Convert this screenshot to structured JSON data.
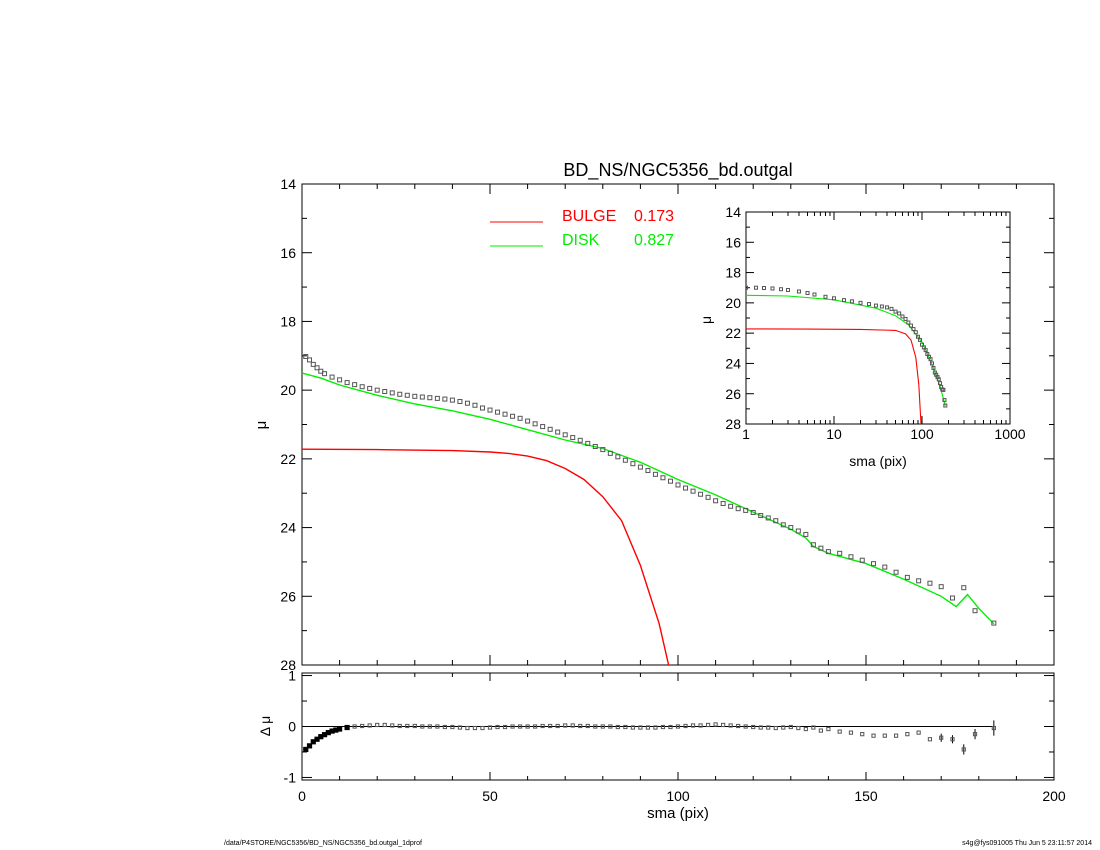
{
  "title": "BD_NS/NGC5356_bd.outgal",
  "footer": {
    "path": "/data/P4STORE/NGC5356/BD_NS/NGC5356_bd.outgal_1dprof",
    "stamp": "s4g@fys091005  Thu Jun  5 23:11:57 2014"
  },
  "colors": {
    "bulge": "#ff0000",
    "disk": "#00ee00",
    "data": "#555555",
    "frame": "#000000"
  },
  "chart_data": [
    {
      "id": "main",
      "type": "line",
      "title": "BD_NS/NGC5356_bd.outgal",
      "xlabel": "",
      "ylabel": "μ",
      "xlim": [
        0,
        200
      ],
      "ylim": [
        28,
        14
      ],
      "xticks": [
        0,
        50,
        100,
        150,
        200
      ],
      "xticklabels": [
        "",
        "",
        "",
        "",
        ""
      ],
      "yticks": [
        14,
        16,
        18,
        20,
        22,
        24,
        26,
        28
      ],
      "yticklabels": [
        "14",
        "16",
        "18",
        "20",
        "22",
        "24",
        "26",
        "28"
      ],
      "legend_position": "top-center",
      "legend": [
        {
          "label": "BULGE",
          "value": "0.173",
          "color": "#ff0000"
        },
        {
          "label": "DISK",
          "value": "0.827",
          "color": "#00ee00"
        }
      ],
      "series": [
        {
          "name": "BULGE",
          "color": "#ff0000",
          "x": [
            0,
            20,
            40,
            50,
            55,
            60,
            65,
            70,
            75,
            80,
            85,
            90,
            95,
            97.5
          ],
          "y": [
            21.72,
            21.73,
            21.76,
            21.8,
            21.84,
            21.92,
            22.05,
            22.28,
            22.6,
            23.1,
            23.8,
            25.1,
            26.8,
            28.0
          ]
        },
        {
          "name": "DISK",
          "color": "#00ee00",
          "x": [
            0,
            5,
            10,
            20,
            30,
            40,
            50,
            60,
            70,
            80,
            90,
            100,
            110,
            120,
            130,
            134,
            136,
            140,
            150,
            160,
            170,
            174,
            177,
            180,
            184
          ],
          "y": [
            19.5,
            19.65,
            19.85,
            20.15,
            20.4,
            20.6,
            20.85,
            21.15,
            21.45,
            21.7,
            22.1,
            22.6,
            23.05,
            23.55,
            24.05,
            24.3,
            24.55,
            24.75,
            25.05,
            25.5,
            26.0,
            26.3,
            25.95,
            26.35,
            26.8
          ]
        }
      ],
      "data_points": {
        "name": "data",
        "x": [
          1,
          2,
          3,
          4,
          5,
          6,
          8,
          10,
          12,
          14,
          16,
          18,
          20,
          22,
          24,
          26,
          28,
          30,
          32,
          34,
          36,
          38,
          40,
          42,
          44,
          46,
          48,
          50,
          52,
          54,
          56,
          58,
          60,
          62,
          64,
          66,
          68,
          70,
          72,
          74,
          76,
          78,
          80,
          82,
          84,
          86,
          88,
          90,
          92,
          94,
          96,
          98,
          100,
          102,
          104,
          106,
          108,
          110,
          112,
          114,
          116,
          118,
          120,
          122,
          124,
          126,
          128,
          130,
          132,
          134,
          136,
          138,
          140,
          143,
          146,
          149,
          152,
          155,
          158,
          161,
          164,
          167,
          170,
          173,
          176,
          179,
          184
        ],
        "y": [
          19.02,
          19.12,
          19.25,
          19.35,
          19.45,
          19.52,
          19.62,
          19.7,
          19.78,
          19.84,
          19.9,
          19.95,
          20.0,
          20.04,
          20.08,
          20.12,
          20.15,
          20.18,
          20.2,
          20.22,
          20.24,
          20.26,
          20.29,
          20.33,
          20.38,
          20.44,
          20.52,
          20.58,
          20.64,
          20.7,
          20.76,
          20.82,
          20.9,
          20.98,
          21.06,
          21.14,
          21.22,
          21.3,
          21.38,
          21.46,
          21.55,
          21.64,
          21.73,
          21.84,
          21.94,
          22.04,
          22.14,
          22.24,
          22.34,
          22.45,
          22.55,
          22.65,
          22.76,
          22.85,
          22.94,
          23.03,
          23.12,
          23.22,
          23.3,
          23.38,
          23.45,
          23.5,
          23.56,
          23.65,
          23.72,
          23.8,
          23.92,
          24.0,
          24.1,
          24.2,
          24.5,
          24.6,
          24.7,
          24.75,
          24.85,
          24.95,
          25.05,
          25.15,
          25.3,
          25.45,
          25.55,
          25.62,
          25.72,
          26.05,
          25.75,
          26.42,
          26.78
        ]
      }
    },
    {
      "id": "inset",
      "type": "line",
      "xlabel": "sma (pix)",
      "ylabel": "μ",
      "xscale": "log",
      "xlim": [
        1,
        1000
      ],
      "ylim": [
        28,
        14
      ],
      "xticks": [
        1,
        10,
        100,
        1000
      ],
      "xticklabels": [
        "1",
        "10",
        "100",
        "1000"
      ],
      "yticks": [
        14,
        16,
        18,
        20,
        22,
        24,
        26,
        28
      ],
      "yticklabels": [
        "14",
        "16",
        "18",
        "20",
        "22",
        "24",
        "26",
        "28"
      ],
      "series": [
        {
          "name": "BULGE",
          "color": "#ff0000",
          "x": [
            1,
            5,
            20,
            50,
            65,
            75,
            85,
            92,
            97.5
          ],
          "y": [
            21.72,
            21.73,
            21.75,
            21.82,
            22.05,
            22.45,
            23.6,
            25.4,
            28.0
          ]
        },
        {
          "name": "DISK",
          "color": "#00ee00",
          "x": [
            1,
            3,
            10,
            30,
            50,
            70,
            100,
            130,
            160,
            184
          ],
          "y": [
            19.5,
            19.55,
            19.8,
            20.35,
            20.85,
            21.45,
            22.6,
            24.05,
            25.5,
            26.8
          ]
        }
      ],
      "data_points": {
        "name": "data",
        "x": [
          1,
          1.3,
          1.6,
          2,
          2.5,
          3,
          4,
          5,
          6,
          8,
          10,
          13,
          16,
          20,
          25,
          30,
          35,
          40,
          45,
          50,
          55,
          60,
          65,
          70,
          75,
          80,
          85,
          90,
          95,
          100,
          105,
          110,
          115,
          120,
          125,
          130,
          135,
          140,
          145,
          150,
          155,
          160,
          165,
          170,
          175,
          180,
          184
        ],
        "y": [
          19.0,
          19.0,
          19.02,
          19.05,
          19.1,
          19.15,
          19.25,
          19.35,
          19.45,
          19.6,
          19.7,
          19.82,
          19.9,
          20.0,
          20.08,
          20.18,
          20.24,
          20.3,
          20.4,
          20.58,
          20.7,
          20.9,
          21.06,
          21.3,
          21.5,
          21.73,
          21.94,
          22.24,
          22.45,
          22.76,
          22.94,
          23.12,
          23.38,
          23.56,
          23.72,
          24.0,
          24.3,
          24.6,
          24.75,
          24.9,
          25.05,
          25.3,
          25.55,
          25.72,
          25.75,
          26.42,
          26.78
        ]
      }
    },
    {
      "id": "residual",
      "type": "scatter",
      "xlabel": "sma (pix)",
      "ylabel": "Δ μ",
      "xlim": [
        0,
        200
      ],
      "ylim": [
        -1.05,
        1.05
      ],
      "xticks": [
        0,
        50,
        100,
        150,
        200
      ],
      "xticklabels": [
        "0",
        "50",
        "100",
        "150",
        "200"
      ],
      "yticks": [
        -1,
        0,
        1
      ],
      "yticklabels": [
        "-1",
        "0",
        "1"
      ],
      "reference_line": 0,
      "x": [
        1,
        2,
        3,
        4,
        5,
        6,
        7,
        8,
        9,
        10,
        12,
        14,
        16,
        18,
        20,
        22,
        24,
        26,
        28,
        30,
        32,
        34,
        36,
        38,
        40,
        42,
        44,
        46,
        48,
        50,
        52,
        54,
        56,
        58,
        60,
        62,
        64,
        66,
        68,
        70,
        72,
        74,
        76,
        78,
        80,
        82,
        84,
        86,
        88,
        90,
        92,
        94,
        96,
        98,
        100,
        102,
        104,
        106,
        108,
        110,
        112,
        114,
        116,
        118,
        120,
        122,
        124,
        126,
        128,
        130,
        132,
        134,
        136,
        138,
        140,
        143,
        146,
        149,
        152,
        155,
        158,
        161,
        164,
        167,
        170,
        173,
        176,
        179,
        184
      ],
      "y": [
        -0.45,
        -0.38,
        -0.3,
        -0.25,
        -0.2,
        -0.16,
        -0.12,
        -0.09,
        -0.07,
        -0.05,
        -0.02,
        0.0,
        0.01,
        0.02,
        0.03,
        0.03,
        0.02,
        0.01,
        0.01,
        0.01,
        0.0,
        0.0,
        0.0,
        -0.01,
        -0.01,
        -0.02,
        -0.03,
        -0.03,
        -0.03,
        -0.02,
        -0.01,
        -0.01,
        0.0,
        0.0,
        0.0,
        0.0,
        0.01,
        0.01,
        0.01,
        0.02,
        0.02,
        0.01,
        0.01,
        0.0,
        0.0,
        0.0,
        -0.01,
        -0.01,
        -0.02,
        -0.02,
        -0.02,
        -0.02,
        -0.01,
        -0.01,
        0.0,
        0.01,
        0.02,
        0.02,
        0.03,
        0.04,
        0.03,
        0.02,
        0.01,
        0.0,
        -0.01,
        -0.02,
        -0.02,
        -0.03,
        -0.02,
        -0.01,
        -0.03,
        -0.05,
        -0.02,
        -0.08,
        -0.05,
        -0.1,
        -0.12,
        -0.15,
        -0.18,
        -0.18,
        -0.18,
        -0.15,
        -0.12,
        -0.25,
        -0.22,
        -0.25,
        -0.45,
        -0.15,
        -0.03
      ],
      "errors": [
        0,
        0,
        0,
        0,
        0,
        0,
        0,
        0,
        0,
        0,
        0,
        0,
        0,
        0,
        0,
        0,
        0,
        0,
        0,
        0,
        0,
        0,
        0,
        0,
        0,
        0,
        0,
        0,
        0,
        0,
        0,
        0,
        0,
        0,
        0,
        0,
        0,
        0,
        0,
        0,
        0,
        0,
        0,
        0,
        0,
        0,
        0,
        0,
        0,
        0,
        0,
        0,
        0,
        0,
        0,
        0,
        0,
        0,
        0,
        0,
        0,
        0,
        0,
        0,
        0,
        0,
        0,
        0,
        0,
        0,
        0,
        0,
        0,
        0,
        0,
        0,
        0,
        0,
        0,
        0,
        0,
        0,
        0,
        0,
        0.08,
        0.08,
        0.1,
        0.1,
        0.15
      ]
    }
  ]
}
